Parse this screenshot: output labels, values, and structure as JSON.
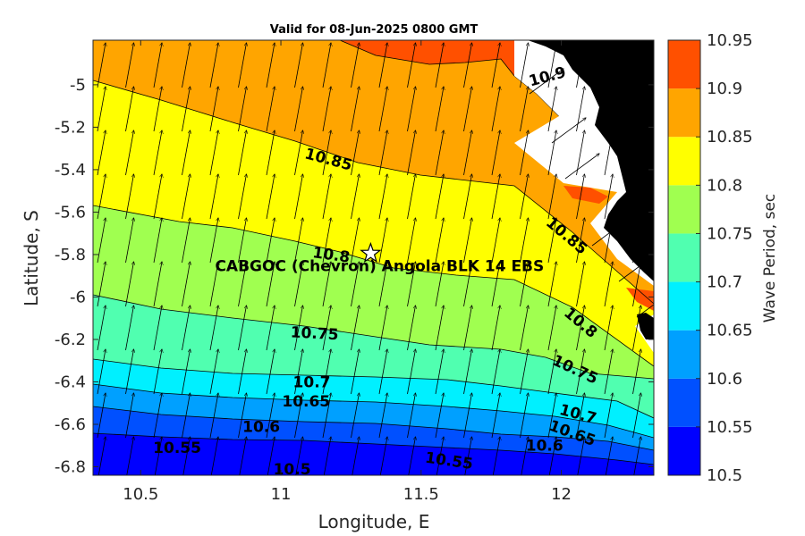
{
  "chart_data": {
    "type": "contour_map",
    "title": "Valid for 08-Jun-2025 0800 GMT",
    "xlabel": "Longitude, E",
    "ylabel": "Latitude, S",
    "colorbar_label": "Wave Period, sec",
    "xlim": [
      10.33,
      12.33
    ],
    "ylim": [
      -6.84,
      -4.79
    ],
    "x_ticks": [
      {
        "value": 10.5,
        "label": "10.5"
      },
      {
        "value": 11,
        "label": "11"
      },
      {
        "value": 11.5,
        "label": "11.5"
      },
      {
        "value": 12,
        "label": "12"
      }
    ],
    "y_ticks": [
      {
        "value": -5,
        "label": "-5"
      },
      {
        "value": -5.2,
        "label": "-5.2"
      },
      {
        "value": -5.4,
        "label": "-5.4"
      },
      {
        "value": -5.6,
        "label": "-5.6"
      },
      {
        "value": -5.8,
        "label": "-5.8"
      },
      {
        "value": -6,
        "label": "-6"
      },
      {
        "value": -6.2,
        "label": "-6.2"
      },
      {
        "value": -6.4,
        "label": "-6.4"
      },
      {
        "value": -6.6,
        "label": "-6.6"
      },
      {
        "value": -6.8,
        "label": "-6.8"
      }
    ],
    "colorbar": {
      "range": [
        10.5,
        10.95
      ],
      "levels": [
        {
          "from": 10.5,
          "to": 10.55,
          "color": "#0000ff"
        },
        {
          "from": 10.55,
          "to": 10.6,
          "color": "#0050ff"
        },
        {
          "from": 10.6,
          "to": 10.65,
          "color": "#00a0ff"
        },
        {
          "from": 10.65,
          "to": 10.7,
          "color": "#00f0ff"
        },
        {
          "from": 10.7,
          "to": 10.75,
          "color": "#50ffb0"
        },
        {
          "from": 10.75,
          "to": 10.8,
          "color": "#a0ff50"
        },
        {
          "from": 10.8,
          "to": 10.85,
          "color": "#ffff00"
        },
        {
          "from": 10.85,
          "to": 10.9,
          "color": "#ffa500"
        },
        {
          "from": 10.9,
          "to": 10.95,
          "color": "#ff5000"
        }
      ],
      "tick_labels": [
        "10.5",
        "10.55",
        "10.6",
        "10.65",
        "10.7",
        "10.75",
        "10.8",
        "10.85",
        "10.9",
        "10.95"
      ]
    },
    "contour_labels": [
      {
        "text": "10.9",
        "lon": 11.95,
        "lat": -4.96,
        "angle": -15
      },
      {
        "text": "10.85",
        "lon": 11.17,
        "lat": -5.35,
        "angle": 15
      },
      {
        "text": "10.85",
        "lon": 12.02,
        "lat": -5.71,
        "angle": 40
      },
      {
        "text": "10.8",
        "lon": 11.18,
        "lat": -5.8,
        "angle": 8
      },
      {
        "text": "10.8",
        "lon": 12.07,
        "lat": -6.12,
        "angle": 40
      },
      {
        "text": "10.75",
        "lon": 11.12,
        "lat": -6.17,
        "angle": 3
      },
      {
        "text": "10.75",
        "lon": 12.05,
        "lat": -6.34,
        "angle": 25
      },
      {
        "text": "10.7",
        "lon": 11.11,
        "lat": -6.4,
        "angle": 0
      },
      {
        "text": "10.7",
        "lon": 12.06,
        "lat": -6.55,
        "angle": 15
      },
      {
        "text": "10.65",
        "lon": 11.09,
        "lat": -6.49,
        "angle": 0
      },
      {
        "text": "10.65",
        "lon": 12.04,
        "lat": -6.64,
        "angle": 20
      },
      {
        "text": "10.6",
        "lon": 10.93,
        "lat": -6.61,
        "angle": 0
      },
      {
        "text": "10.6",
        "lon": 11.94,
        "lat": -6.7,
        "angle": 0
      },
      {
        "text": "10.55",
        "lon": 10.63,
        "lat": -6.71,
        "angle": 0
      },
      {
        "text": "10.55",
        "lon": 11.6,
        "lat": -6.77,
        "angle": 8
      },
      {
        "text": "10.5",
        "lon": 11.04,
        "lat": -6.81,
        "angle": 0
      }
    ],
    "location": {
      "name": "CABGOC (Chevron)  Angola BLK 14  EBS",
      "lon": 11.32,
      "lat": -5.795,
      "marker": "star"
    },
    "colors": {
      "land": "#000000",
      "frame": "#262626"
    }
  }
}
